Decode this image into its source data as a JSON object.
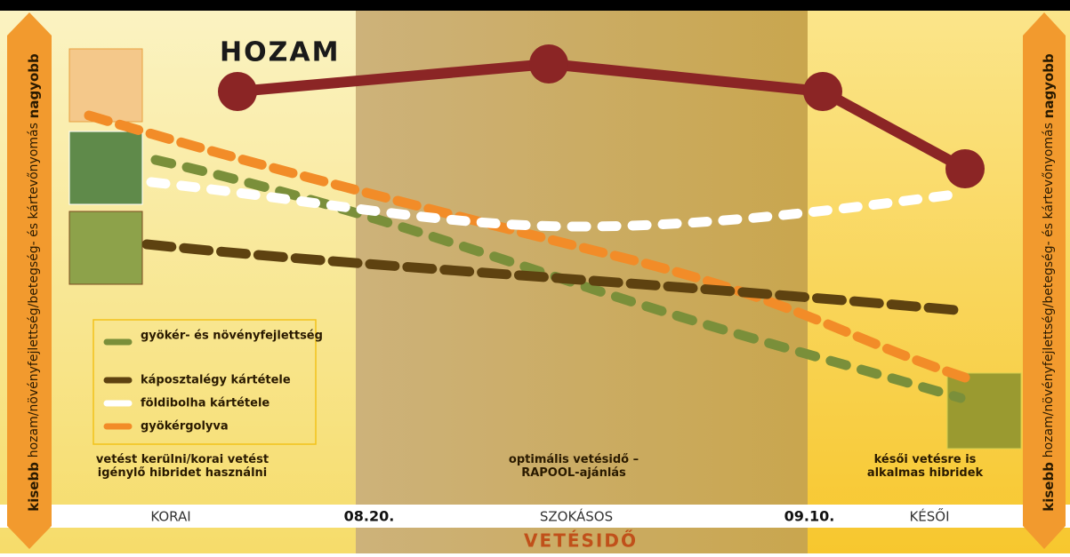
{
  "title": "HOZAM",
  "side_label": {
    "low": "kisebb",
    "middle": "hozam/növényfejlettség/betegség- és kártevőnyomás",
    "high": "nagyobb"
  },
  "legend": [
    "gyökér- és növényfejlettség",
    "káposztalégy kártétele",
    "földibolha kártétele",
    "gyökérgolyva"
  ],
  "notes": [
    "vetést kerülni/korai vetést igénylő hibridet használni",
    "optimális vetésidő – RAPOOL-ajánlás",
    "késői vetésre is alkalmas hibridek"
  ],
  "timeline": [
    "KORAI",
    "08.20.",
    "SZOKÁSOS",
    "09.10.",
    "KÉSŐI"
  ],
  "axis_title": "VETÉSIDŐ"
}
